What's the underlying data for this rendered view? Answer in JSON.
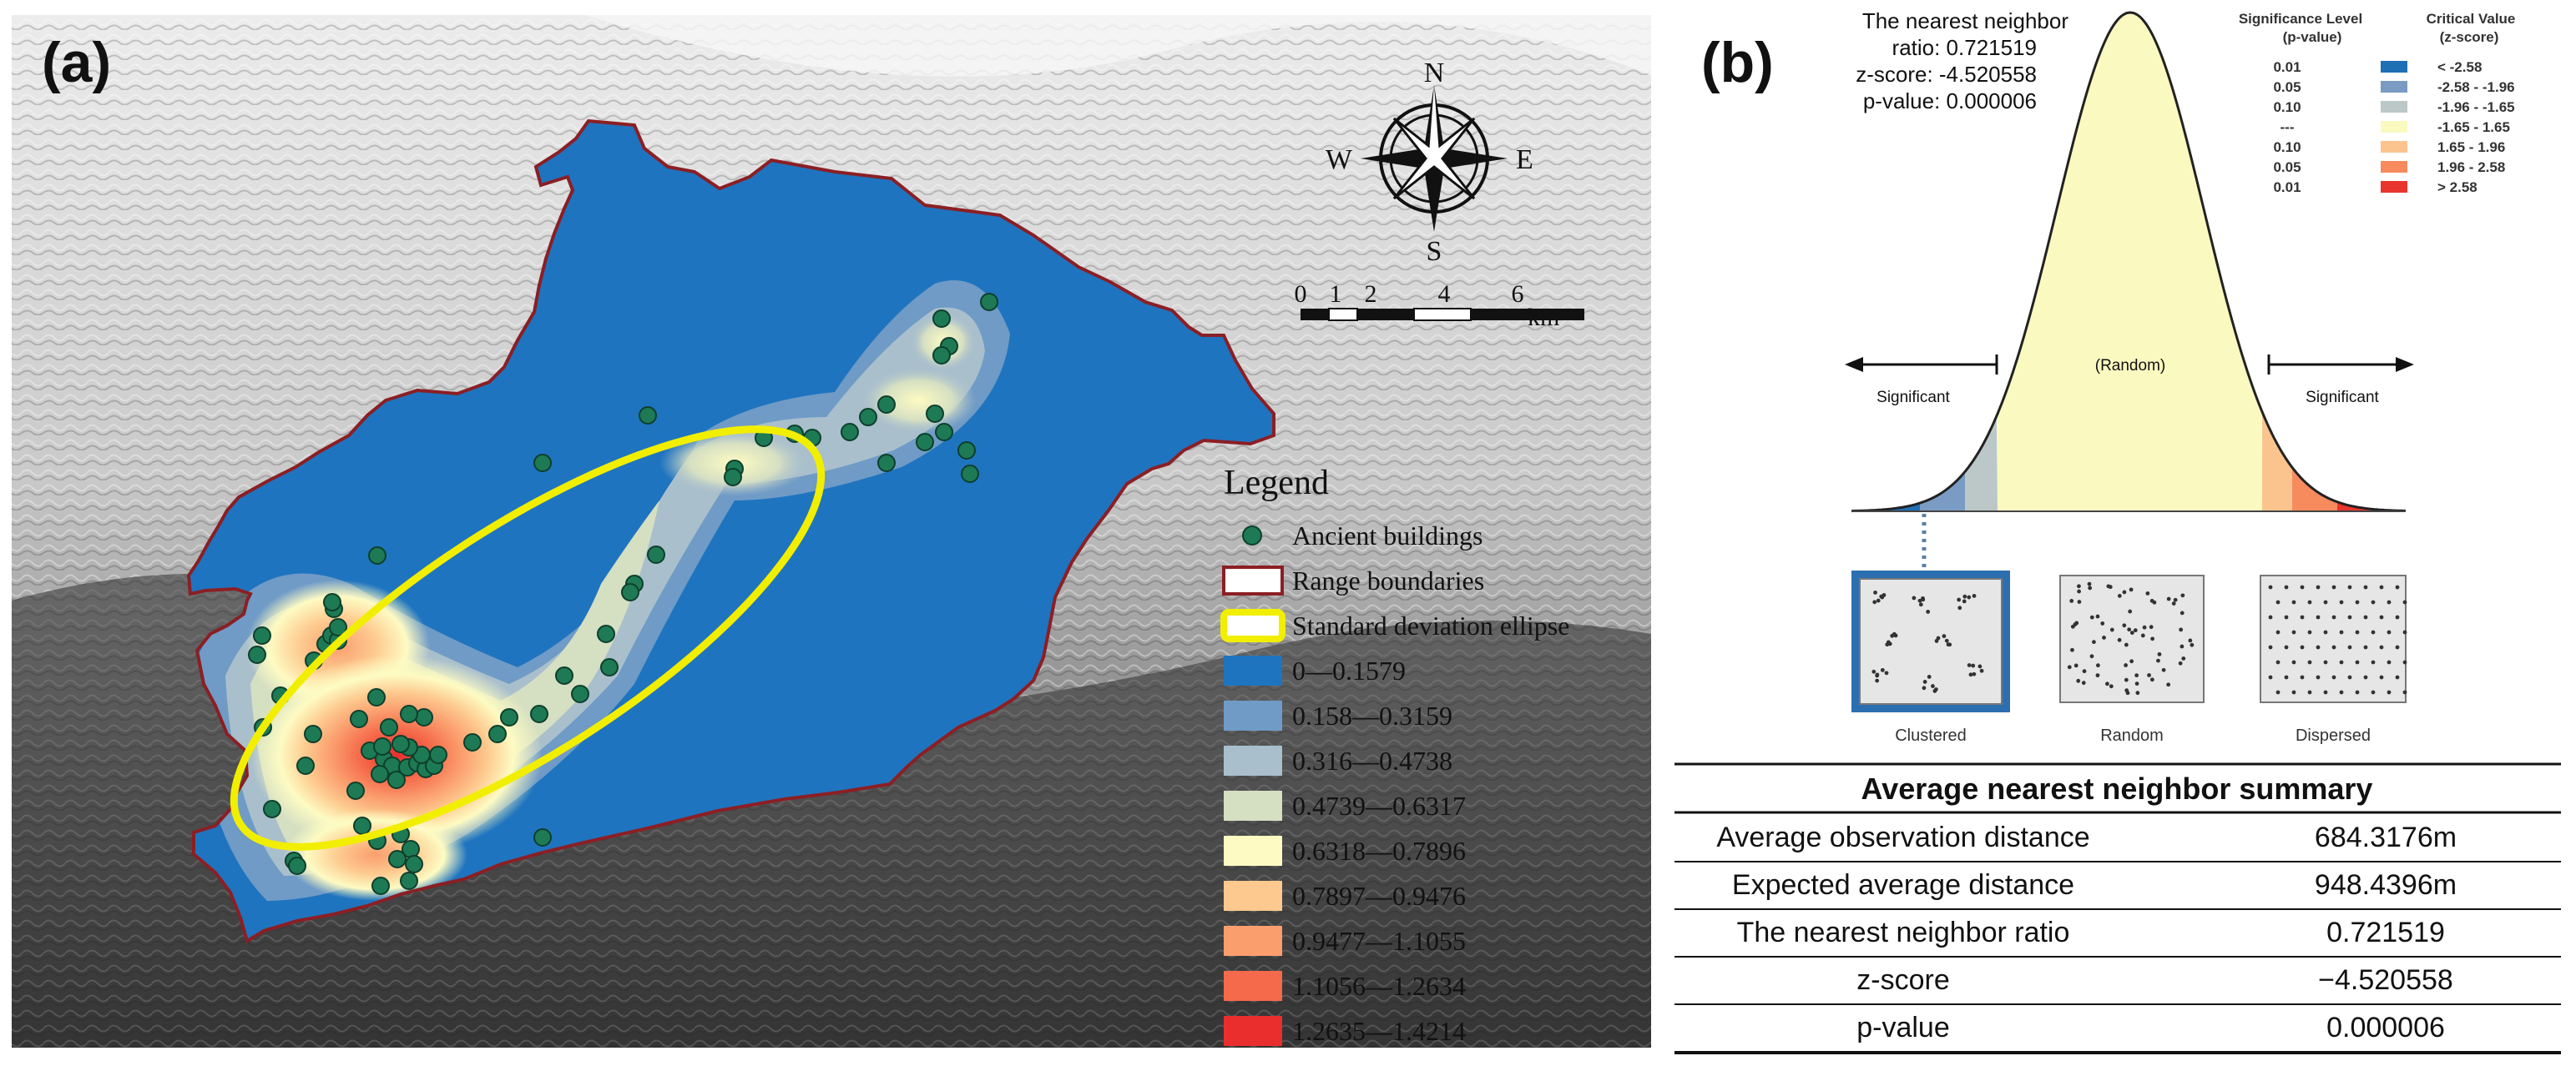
{
  "panel_a": {
    "label": "(a)",
    "compass": {
      "n": "N",
      "s": "S",
      "e": "E",
      "w": "W"
    },
    "scale_bar": {
      "ticks": [
        "0",
        "1",
        "2",
        "4",
        "6"
      ],
      "unit": "km"
    },
    "legend": {
      "title": "Legend",
      "items": [
        {
          "label": "Ancient buildings",
          "kind": "point",
          "color": "#1d7a55"
        },
        {
          "label": "Range boundaries",
          "kind": "outline",
          "color": "#8b1f24"
        },
        {
          "label": "Standard deviation ellipse",
          "kind": "ellipse",
          "color": "#f2ee00"
        },
        {
          "label": "0—0.1579",
          "kind": "fill",
          "color": "#1f74bf"
        },
        {
          "label": "0.158—0.3159",
          "kind": "fill",
          "color": "#6f9bc6"
        },
        {
          "label": "0.316—0.4738",
          "kind": "fill",
          "color": "#a9bfcc"
        },
        {
          "label": "0.4739—0.6317",
          "kind": "fill",
          "color": "#d5dfc2"
        },
        {
          "label": "0.6318—0.7896",
          "kind": "fill",
          "color": "#fdfbc3"
        },
        {
          "label": "0.7897—0.9476",
          "kind": "fill",
          "color": "#fdc98e"
        },
        {
          "label": "0.9477—1.1055",
          "kind": "fill",
          "color": "#fb9e6e"
        },
        {
          "label": "1.1056—1.2634",
          "kind": "fill",
          "color": "#f56a4a"
        },
        {
          "label": "1.2635—1.4214",
          "kind": "fill",
          "color": "#ea2d2d"
        }
      ]
    }
  },
  "panel_b": {
    "label": "(b)",
    "stats_lines": [
      "The nearest neighbor",
      "ratio: 0.721519",
      "z-score: -4.520558",
      "p-value: 0.000006"
    ],
    "table_headers": {
      "significance": [
        "Significance Level",
        "(p-value)"
      ],
      "critical": [
        "Critical Value",
        "(z-score)"
      ]
    },
    "significance_rows": [
      {
        "p": "0.01",
        "z": "< -2.58",
        "color": "#1f6fb5"
      },
      {
        "p": "0.05",
        "z": "-2.58 - -1.96",
        "color": "#7a9cc4"
      },
      {
        "p": "0.10",
        "z": "-1.96 - -1.65",
        "color": "#bcc7c7"
      },
      {
        "p": "---",
        "z": "-1.65 - 1.65",
        "color": "#fafac0"
      },
      {
        "p": "0.10",
        "z": "1.65 - 1.96",
        "color": "#fbc48e"
      },
      {
        "p": "0.05",
        "z": "1.96 - 2.58",
        "color": "#f78b5e"
      },
      {
        "p": "0.01",
        "z": "> 2.58",
        "color": "#e8352d"
      }
    ],
    "curve_labels": {
      "left": "Significant",
      "center": "(Random)",
      "right": "Significant"
    },
    "patterns": [
      "Clustered",
      "Random",
      "Dispersed"
    ],
    "summary": {
      "title": "Average nearest neighbor summary",
      "rows": [
        {
          "label": "Average observation distance",
          "value": "684.3176m"
        },
        {
          "label": "Expected average distance",
          "value": "948.4396m"
        },
        {
          "label": "The nearest neighbor ratio",
          "value": "0.721519"
        },
        {
          "label": "z-score",
          "value": "−4.520558"
        },
        {
          "label": "p-value",
          "value": "0.000006"
        }
      ]
    }
  }
}
